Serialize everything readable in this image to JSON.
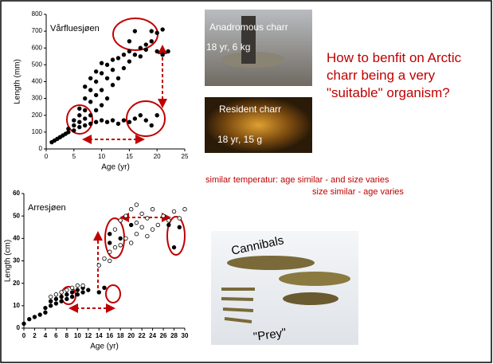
{
  "chart_data": [
    {
      "type": "scatter",
      "title": "Vårfluesjøen",
      "xlabel": "Age (yr)",
      "ylabel": "Length (mm)",
      "xlim": [
        0,
        25
      ],
      "ylim": [
        0,
        800
      ],
      "xticks": [
        0,
        5,
        10,
        15,
        20,
        25
      ],
      "yticks": [
        0,
        100,
        200,
        300,
        400,
        500,
        600,
        700,
        800
      ],
      "series": [
        {
          "color": "#000000",
          "marker": "filled",
          "x": [
            1,
            1.5,
            2,
            2.5,
            3,
            3.5,
            4,
            4,
            5,
            5,
            5,
            6,
            6,
            6,
            6,
            7,
            7,
            7,
            7,
            7,
            8,
            8,
            8,
            8,
            8,
            9,
            9,
            9,
            9,
            9,
            10,
            10,
            10,
            10,
            10,
            11,
            11,
            11,
            11,
            12,
            12,
            12,
            12,
            13,
            13,
            13,
            14,
            14,
            14,
            15,
            15,
            15,
            16,
            16,
            17,
            17,
            17,
            18,
            18,
            18,
            19,
            19,
            19,
            20,
            20,
            20,
            21,
            21,
            22,
            16,
            15
          ],
          "values": [
            40,
            50,
            60,
            70,
            80,
            90,
            100,
            120,
            110,
            140,
            170,
            130,
            160,
            200,
            240,
            140,
            180,
            230,
            300,
            370,
            150,
            200,
            280,
            350,
            420,
            160,
            230,
            320,
            400,
            460,
            170,
            260,
            350,
            450,
            510,
            160,
            300,
            420,
            500,
            170,
            380,
            470,
            530,
            150,
            420,
            540,
            170,
            480,
            560,
            160,
            520,
            580,
            180,
            560,
            200,
            550,
            600,
            170,
            620,
            590,
            140,
            640,
            700,
            200,
            580,
            690,
            560,
            710,
            580,
            700,
            640
          ]
        }
      ]
    },
    {
      "type": "scatter",
      "title": "Arresjøen",
      "xlabel": "Age (yr)",
      "ylabel": "Length (cm)",
      "xlim": [
        0,
        30
      ],
      "ylim": [
        0,
        60
      ],
      "xticks": [
        0,
        2,
        4,
        6,
        8,
        10,
        12,
        14,
        16,
        18,
        20,
        22,
        24,
        26,
        28,
        30
      ],
      "yticks": [
        0,
        10,
        20,
        30,
        40,
        50,
        60
      ],
      "series": [
        {
          "color": "#000000",
          "marker": "filled",
          "x": [
            0,
            1,
            2,
            3,
            4,
            4,
            5,
            5,
            6,
            6,
            7,
            7,
            8,
            8,
            9,
            9,
            10,
            10,
            11,
            11,
            12,
            14,
            15,
            16,
            16,
            18,
            20,
            27,
            28,
            29
          ],
          "values": [
            2,
            4,
            5,
            6,
            7,
            9,
            10,
            12,
            11,
            13,
            12,
            14,
            13,
            15,
            14,
            16,
            15,
            17,
            16,
            18,
            17,
            16,
            18,
            38,
            42,
            40,
            46,
            46,
            36,
            45
          ]
        },
        {
          "color": "#000000",
          "marker": "open",
          "x": [
            5,
            6,
            7,
            8,
            9,
            10,
            11,
            14,
            15,
            16,
            16,
            17,
            17,
            18,
            18,
            19,
            19,
            20,
            20,
            21,
            21,
            21,
            22,
            22,
            23,
            23,
            24,
            24,
            25,
            26,
            27,
            28,
            29,
            30
          ],
          "values": [
            14,
            15,
            16,
            17,
            18,
            19,
            19,
            28,
            31,
            30,
            34,
            36,
            44,
            37,
            48,
            40,
            50,
            38,
            53,
            42,
            47,
            55,
            45,
            51,
            41,
            49,
            44,
            53,
            46,
            50,
            48,
            52,
            49,
            53
          ]
        }
      ]
    }
  ],
  "slide": {
    "question": "How to benfit on Arctic charr being a very \"suitable\" organism?",
    "photo1_caption": "Anadromous charr",
    "photo1_detail": "18 yr, 6 kg",
    "photo2_caption": "Resident charr",
    "photo2_detail": "18 yr, 15 g",
    "note_line1": "similar temperatur: age similar - and size varies",
    "note_line2": "size similar - age varies",
    "photo3_label1": "Cannibals",
    "photo3_label2": "\"Prey\""
  }
}
